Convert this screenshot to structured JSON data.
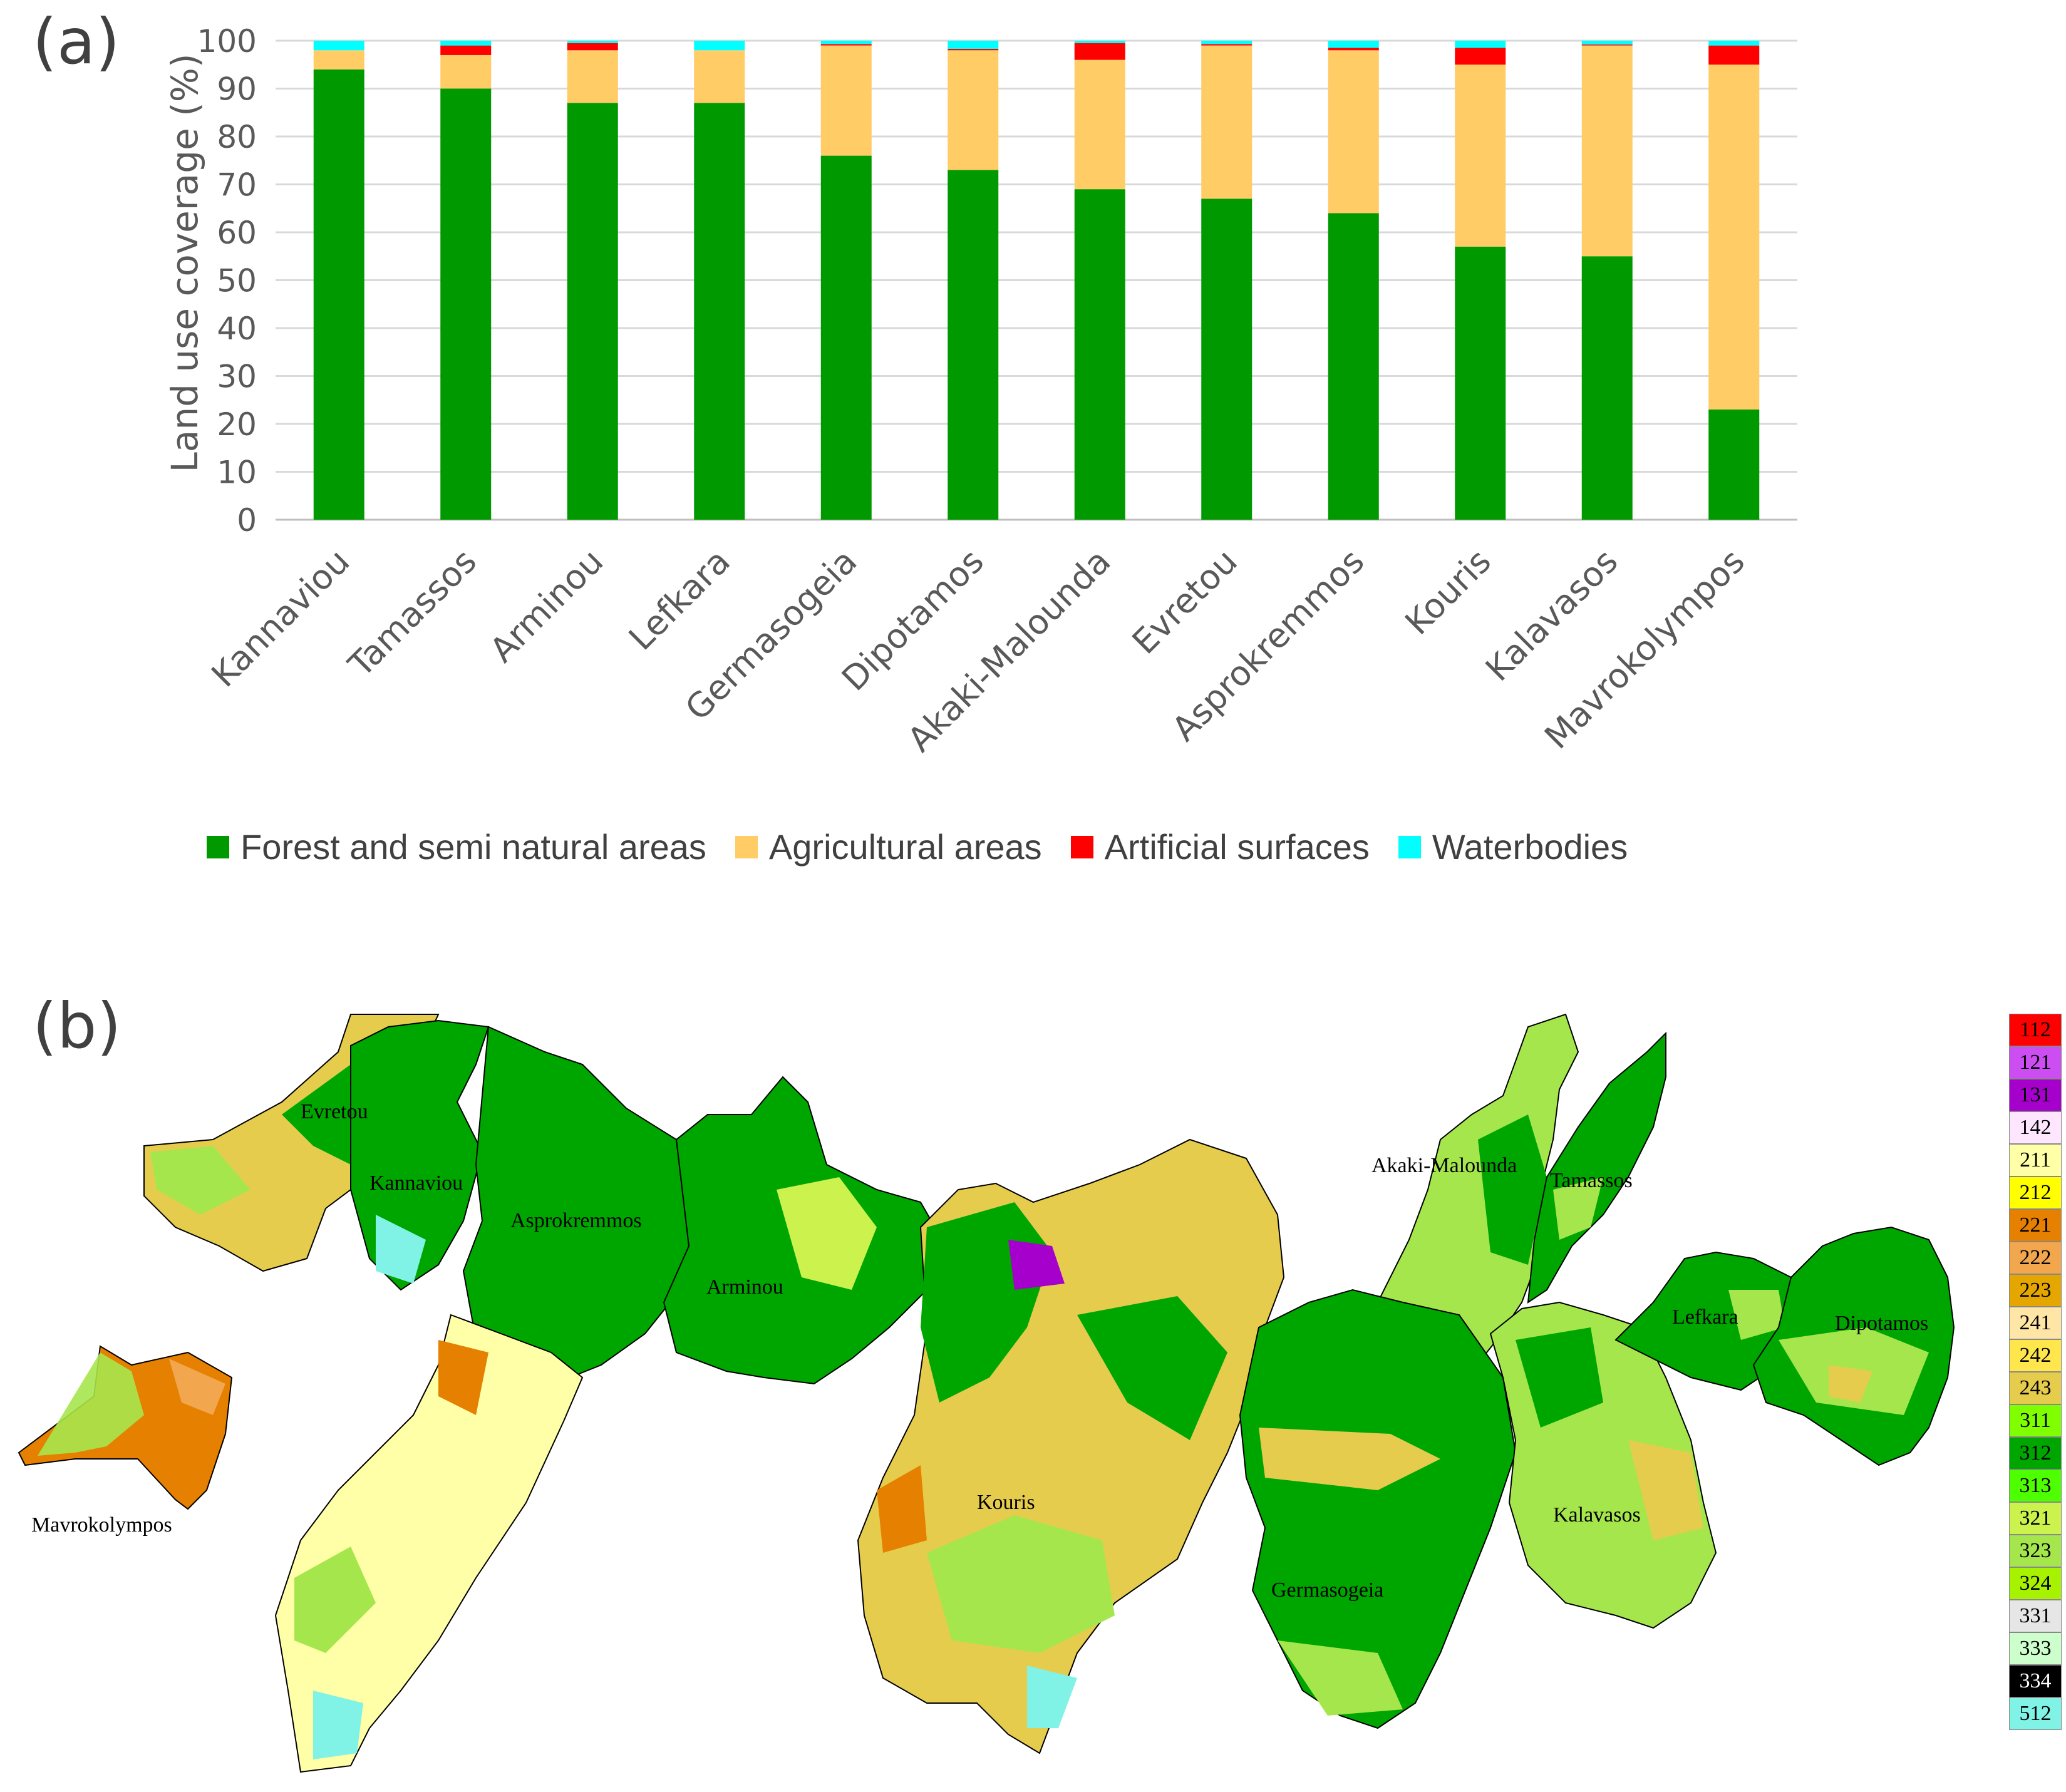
{
  "panel_a_label": "(a)",
  "panel_b_label": "(b)",
  "chart_data": {
    "type": "bar",
    "stacked": true,
    "categories": [
      "Kannaviou",
      "Tamassos",
      "Arminou",
      "Lefkara",
      "Germasogeia",
      "Dipotamos",
      "Akaki-Malounda",
      "Evretou",
      "Asprokremmos",
      "Kouris",
      "Kalavasos",
      "Mavrokolympos"
    ],
    "series": [
      {
        "name": "Forest and semi natural areas",
        "color": "#009900",
        "values": [
          94,
          90,
          87,
          87,
          76,
          73,
          69,
          67,
          64,
          57,
          55,
          23
        ]
      },
      {
        "name": "Agricultural areas",
        "color": "#FFCC66",
        "values": [
          4,
          7,
          11,
          11,
          23,
          25,
          27,
          32,
          34,
          38,
          44,
          72
        ]
      },
      {
        "name": "Artificial surfaces",
        "color": "#FF0000",
        "values": [
          0,
          2,
          1.5,
          0,
          0.3,
          0.3,
          3.5,
          0.3,
          0.5,
          3.5,
          0.2,
          4
        ]
      },
      {
        "name": "Waterbodies",
        "color": "#00FFFF",
        "values": [
          2,
          1,
          0.5,
          2,
          0.7,
          1.7,
          0.5,
          0.7,
          1.5,
          1.5,
          0.8,
          1
        ]
      }
    ],
    "ylabel": "Land use coverage (%)",
    "xlabel": "",
    "ylim": [
      0,
      100
    ],
    "yticks": [
      0,
      10,
      20,
      30,
      40,
      50,
      60,
      70,
      80,
      90,
      100
    ],
    "grid": true,
    "legend_position": "bottom"
  },
  "map": {
    "basins": [
      "Evretou",
      "Kannaviou",
      "Asprokremmos",
      "Arminou",
      "Mavrokolympos",
      "Kouris",
      "Akaki-Malounda",
      "Tamassos",
      "Lefkara",
      "Dipotamos",
      "Germasogeia",
      "Kalavasos"
    ],
    "legend": [
      {
        "code": "112",
        "color": "#FF0000",
        "text_color": "#000000"
      },
      {
        "code": "121",
        "color": "#CC4DF2",
        "text_color": "#000000"
      },
      {
        "code": "131",
        "color": "#A600CC",
        "text_color": "#000000"
      },
      {
        "code": "142",
        "color": "#FFE6FF",
        "text_color": "#000000"
      },
      {
        "code": "211",
        "color": "#FFFFA8",
        "text_color": "#000000"
      },
      {
        "code": "212",
        "color": "#FFFF00",
        "text_color": "#000000"
      },
      {
        "code": "221",
        "color": "#E68000",
        "text_color": "#000000"
      },
      {
        "code": "222",
        "color": "#F2A64D",
        "text_color": "#000000"
      },
      {
        "code": "223",
        "color": "#E6A600",
        "text_color": "#000000"
      },
      {
        "code": "241",
        "color": "#FFE6A6",
        "text_color": "#000000"
      },
      {
        "code": "242",
        "color": "#FFE64D",
        "text_color": "#000000"
      },
      {
        "code": "243",
        "color": "#E6CC4D",
        "text_color": "#000000"
      },
      {
        "code": "311",
        "color": "#80FF00",
        "text_color": "#000000"
      },
      {
        "code": "312",
        "color": "#00A600",
        "text_color": "#000000"
      },
      {
        "code": "313",
        "color": "#4DFF00",
        "text_color": "#000000"
      },
      {
        "code": "321",
        "color": "#CCF24D",
        "text_color": "#000000"
      },
      {
        "code": "323",
        "color": "#A6E64D",
        "text_color": "#000000"
      },
      {
        "code": "324",
        "color": "#A6F200",
        "text_color": "#000000"
      },
      {
        "code": "331",
        "color": "#E6E6E6",
        "text_color": "#000000"
      },
      {
        "code": "333",
        "color": "#CCFFCC",
        "text_color": "#000000"
      },
      {
        "code": "334",
        "color": "#000000",
        "text_color": "#FFFFFF"
      },
      {
        "code": "512",
        "color": "#80F2E6",
        "text_color": "#000000"
      }
    ]
  }
}
